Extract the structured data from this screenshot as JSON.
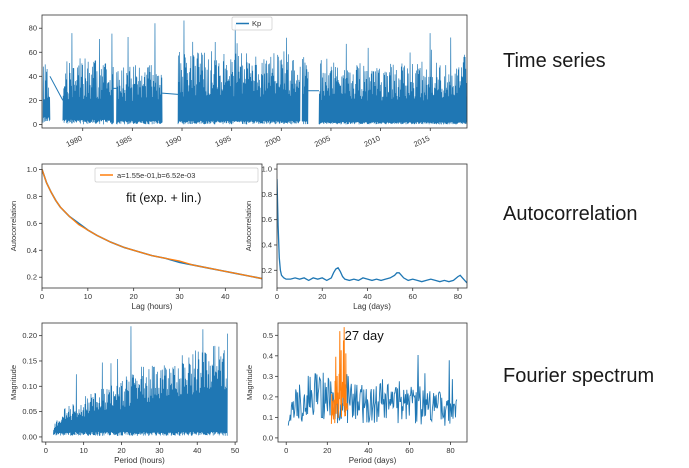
{
  "row_labels": {
    "time_series": "Time series",
    "autocorrelation": "Autocorrelation",
    "fourier": "Fourier spectrum"
  },
  "colors": {
    "blue": "#1f77b4",
    "orange": "#ff7f0e",
    "grey": "#666666"
  },
  "chart_data": [
    {
      "id": "timeseries",
      "type": "line",
      "title": "",
      "xlabel": "",
      "ylabel": "",
      "xlim": [
        1975.9,
        2018.7
      ],
      "ylim": [
        -3,
        91
      ],
      "xticks": [
        1980,
        1985,
        1990,
        1995,
        2000,
        2005,
        2010,
        2015
      ],
      "xtick_labels": [
        "1980",
        "1985",
        "1990",
        "1995",
        "2000",
        "2005",
        "2010",
        "2015"
      ],
      "yticks": [
        0,
        20,
        40,
        60,
        80
      ],
      "ytick_labels": [
        "0",
        "20",
        "40",
        "60",
        "80"
      ],
      "legend": {
        "position": "top-center",
        "entries": [
          "Kp"
        ]
      },
      "series": [
        {
          "name": "Kp",
          "color": "#1f77b4",
          "style": "dense-noise",
          "segments": [
            {
              "x_start": 1976.0,
              "x_end": 1976.7,
              "baseline": 6,
              "peak_median": 35,
              "peak_max": 67
            },
            {
              "x_start": 1978.0,
              "x_end": 1983.1,
              "baseline": 4,
              "peak_median": 38,
              "peak_max": 91
            },
            {
              "x_start": 1983.4,
              "x_end": 1988.0,
              "baseline": 3,
              "peak_median": 34,
              "peak_max": 87
            },
            {
              "x_start": 1989.6,
              "x_end": 2001.9,
              "baseline": 3,
              "peak_median": 42,
              "peak_max": 90
            },
            {
              "x_start": 2002.1,
              "x_end": 2002.7,
              "baseline": 4,
              "peak_median": 40,
              "peak_max": 70
            },
            {
              "x_start": 2003.8,
              "x_end": 2018.7,
              "baseline": 2,
              "peak_median": 36,
              "peak_max": 83
            }
          ],
          "connectors": [
            {
              "x": [
                1976.7,
                1978.0
              ],
              "y": [
                40,
                20
              ]
            },
            {
              "x": [
                1983.1,
                1983.4
              ],
              "y": [
                30,
                30
              ]
            },
            {
              "x": [
                1988.0,
                1989.6
              ],
              "y": [
                26,
                25
              ]
            },
            {
              "x": [
                2002.7,
                2003.8
              ],
              "y": [
                28,
                28
              ]
            }
          ]
        }
      ]
    },
    {
      "id": "acf_hours",
      "type": "line",
      "title": "",
      "xlabel": "Lag (hours)",
      "ylabel": "Autocorrelation",
      "xlim": [
        0,
        48
      ],
      "ylim": [
        0.12,
        1.04
      ],
      "xticks": [
        0,
        10,
        20,
        30,
        40
      ],
      "xtick_labels": [
        "0",
        "10",
        "20",
        "30",
        "40"
      ],
      "yticks": [
        0.2,
        0.4,
        0.6,
        0.8,
        1.0
      ],
      "ytick_labels": [
        "0.2",
        "0.4",
        "0.6",
        "0.8",
        "1.0"
      ],
      "legend": {
        "position": "top-right",
        "entries": [
          "a=1.55e-01,b=6.52e-03"
        ]
      },
      "annotations": [
        {
          "text": "fit (exp. + lin.)",
          "x": 19,
          "y": 0.9
        }
      ],
      "series": [
        {
          "name": "",
          "color": "#1f77b4",
          "x": [
            0,
            1,
            2,
            3,
            4,
            6,
            8,
            10,
            12,
            15,
            18,
            21,
            24,
            27,
            30,
            33,
            36,
            39,
            42,
            45,
            48
          ],
          "y": [
            1.0,
            0.9,
            0.83,
            0.77,
            0.72,
            0.65,
            0.6,
            0.55,
            0.51,
            0.46,
            0.42,
            0.39,
            0.36,
            0.34,
            0.31,
            0.29,
            0.27,
            0.25,
            0.23,
            0.21,
            0.19
          ]
        },
        {
          "name": "a=1.55e-01,b=6.52e-03",
          "color": "#ff7f0e",
          "x": [
            0,
            1,
            2,
            3,
            4,
            6,
            8,
            10,
            12,
            15,
            18,
            21,
            24,
            27,
            30,
            33,
            36,
            39,
            42,
            45,
            48
          ],
          "y": [
            1.0,
            0.9,
            0.83,
            0.77,
            0.72,
            0.65,
            0.59,
            0.55,
            0.51,
            0.46,
            0.42,
            0.39,
            0.36,
            0.34,
            0.32,
            0.29,
            0.27,
            0.25,
            0.23,
            0.21,
            0.19
          ]
        }
      ]
    },
    {
      "id": "acf_days",
      "type": "line",
      "title": "",
      "xlabel": "Lag (days)",
      "ylabel": "Autocorrelation",
      "xlim": [
        0,
        84
      ],
      "ylim": [
        0.06,
        1.04
      ],
      "xticks": [
        0,
        20,
        40,
        60,
        80
      ],
      "xtick_labels": [
        "0",
        "20",
        "40",
        "60",
        "80"
      ],
      "yticks": [
        0.2,
        0.4,
        0.6,
        0.8,
        1.0
      ],
      "ytick_labels": [
        "0.2",
        "0.4",
        "0.6",
        "0.8",
        "1.0"
      ],
      "series": [
        {
          "name": "",
          "color": "#1f77b4",
          "x": [
            0,
            0.5,
            1,
            1.5,
            2,
            3,
            4,
            6,
            8,
            10,
            12,
            14,
            16,
            18,
            20,
            22,
            24,
            25,
            26,
            27,
            28,
            29,
            30,
            32,
            34,
            36,
            38,
            40,
            42,
            44,
            46,
            48,
            50,
            52,
            53,
            54,
            55,
            56,
            58,
            60,
            62,
            64,
            66,
            68,
            70,
            72,
            74,
            76,
            78,
            80,
            81,
            82,
            83,
            84
          ],
          "y": [
            0.92,
            0.55,
            0.3,
            0.2,
            0.16,
            0.14,
            0.13,
            0.13,
            0.14,
            0.13,
            0.14,
            0.12,
            0.14,
            0.13,
            0.14,
            0.12,
            0.14,
            0.18,
            0.21,
            0.22,
            0.19,
            0.15,
            0.13,
            0.12,
            0.13,
            0.12,
            0.14,
            0.13,
            0.12,
            0.13,
            0.12,
            0.13,
            0.14,
            0.16,
            0.18,
            0.18,
            0.16,
            0.14,
            0.12,
            0.13,
            0.12,
            0.11,
            0.12,
            0.13,
            0.12,
            0.11,
            0.12,
            0.11,
            0.12,
            0.15,
            0.16,
            0.14,
            0.12,
            0.1
          ]
        }
      ]
    },
    {
      "id": "fft_hours",
      "type": "line",
      "title": "",
      "xlabel": "Period (hours)",
      "ylabel": "Magnitude",
      "xlim": [
        -1,
        50.5
      ],
      "ylim": [
        -0.01,
        0.225
      ],
      "xticks": [
        0,
        10,
        20,
        30,
        40,
        50
      ],
      "xtick_labels": [
        "0",
        "10",
        "20",
        "30",
        "40",
        "50"
      ],
      "yticks": [
        0.0,
        0.05,
        0.1,
        0.15,
        0.2
      ],
      "ytick_labels": [
        "0.00",
        "0.05",
        "0.10",
        "0.15",
        "0.20"
      ],
      "series": [
        {
          "name": "",
          "color": "#1f77b4",
          "style": "dense-noise",
          "x_start": 2,
          "x_end": 48,
          "envelope": {
            "x": [
              2,
              5,
              10,
              15,
              20,
              25,
              30,
              35,
              40,
              45,
              48
            ],
            "y": [
              0.02,
              0.05,
              0.07,
              0.085,
              0.1,
              0.12,
              0.13,
              0.14,
              0.15,
              0.16,
              0.17
            ]
          },
          "max": 0.22
        }
      ]
    },
    {
      "id": "fft_days",
      "type": "line",
      "title": "",
      "xlabel": "Period (days)",
      "ylabel": "Magnitude",
      "xlim": [
        -4,
        88
      ],
      "ylim": [
        -0.02,
        0.56
      ],
      "xticks": [
        0,
        20,
        40,
        60,
        80
      ],
      "xtick_labels": [
        "0",
        "20",
        "40",
        "60",
        "80"
      ],
      "yticks": [
        0.0,
        0.1,
        0.2,
        0.3,
        0.4,
        0.5
      ],
      "ytick_labels": [
        "0.0",
        "0.1",
        "0.2",
        "0.3",
        "0.4",
        "0.5"
      ],
      "annotations": [
        {
          "text": "27 day",
          "x": 27,
          "y": 0.5
        }
      ],
      "series": [
        {
          "name": "",
          "color": "#1f77b4",
          "style": "noise",
          "x_start": 1,
          "x_end": 83,
          "envelope": {
            "x": [
              1,
              5,
              10,
              15,
              20,
              22,
              25,
              30,
              35,
              40,
              50,
              60,
              70,
              80,
              83
            ],
            "y": [
              0.1,
              0.2,
              0.24,
              0.25,
              0.24,
              0.22,
              0.2,
              0.2,
              0.2,
              0.19,
              0.2,
              0.19,
              0.18,
              0.15,
              0.14
            ]
          },
          "max": 0.47
        },
        {
          "name": "",
          "color": "#ff7f0e",
          "style": "noise",
          "x_start": 22,
          "x_end": 30,
          "envelope": {
            "x": [
              22,
              24,
              26,
              27,
              28,
              30
            ],
            "y": [
              0.18,
              0.3,
              0.4,
              0.48,
              0.42,
              0.25
            ]
          },
          "max": 0.55
        }
      ]
    }
  ]
}
